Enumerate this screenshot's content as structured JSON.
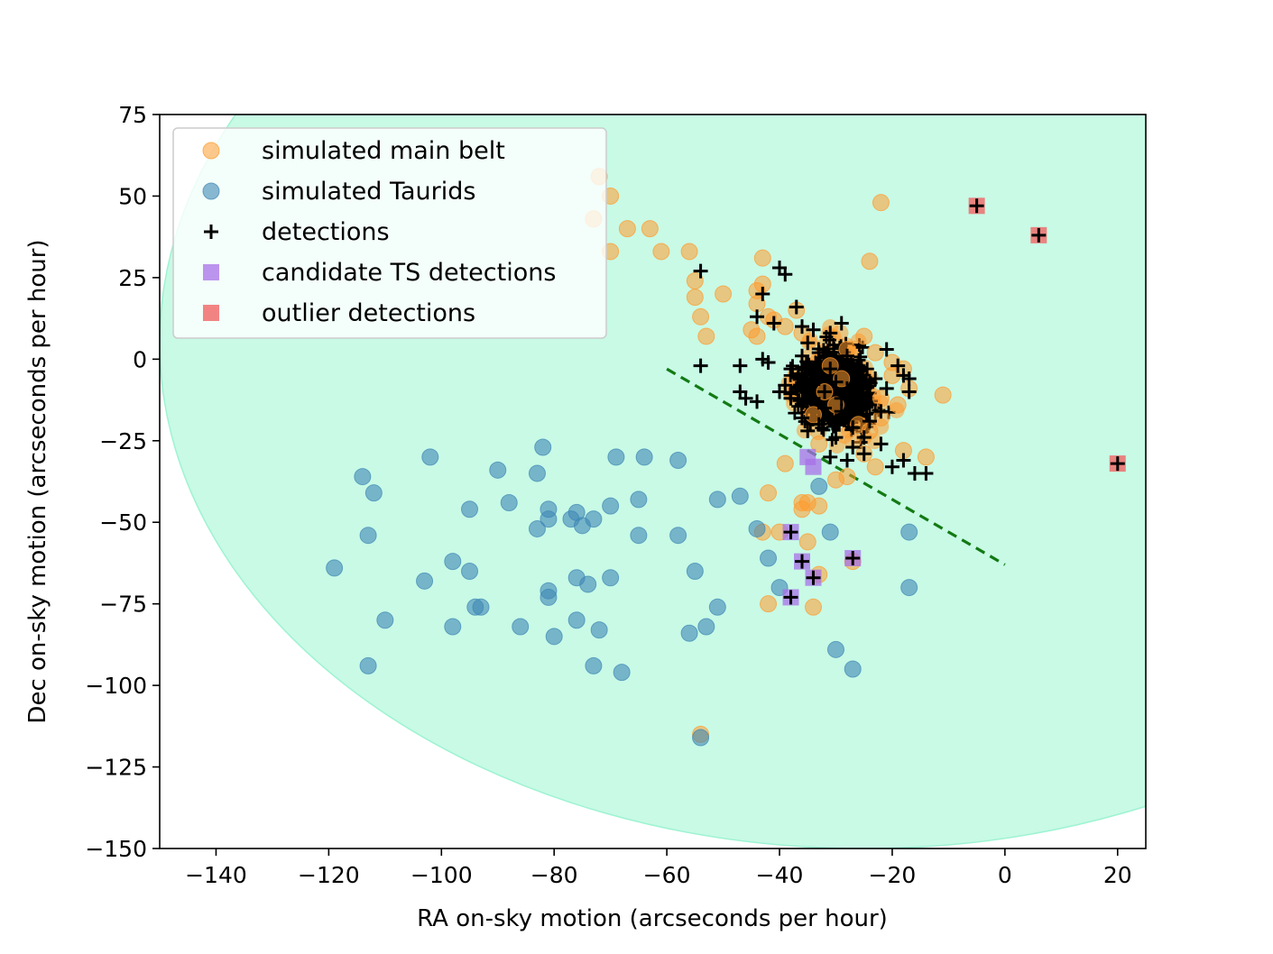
{
  "chart_data": {
    "type": "scatter",
    "title": "",
    "xlabel": "RA on-sky motion (arcseconds per hour)",
    "ylabel": "Dec on-sky motion (arcseconds per hour)",
    "xlim": [
      -150,
      25
    ],
    "ylim": [
      -150,
      75
    ],
    "xticks": [
      -140,
      -120,
      -100,
      -80,
      -60,
      -40,
      -20,
      0,
      20
    ],
    "yticks": [
      -150,
      -125,
      -100,
      -75,
      -50,
      -25,
      0,
      25,
      50,
      75
    ],
    "xtick_labels": [
      "−140",
      "−120",
      "−100",
      "−80",
      "−60",
      "−40",
      "−20",
      "0",
      "20"
    ],
    "ytick_labels": [
      "−150",
      "−125",
      "−100",
      "−75",
      "−50",
      "−25",
      "0",
      "25",
      "50",
      "75"
    ],
    "grid": false,
    "legend_position": "top-left",
    "colors": {
      "main_belt": "#ff9a2e",
      "taurids": "#3f87b5",
      "detections": "#000000",
      "candidate": "#a870e8",
      "outlier": "#f06565",
      "region": "#c8fae6",
      "region_edge": "#9ef3d2",
      "threshold_line": "#137a13"
    },
    "region": {
      "shape": "ellipse",
      "center": [
        -25,
        5
      ],
      "semi_axes": [
        125,
        155
      ]
    },
    "threshold_line": {
      "style": "dashed",
      "points": [
        [
          -60,
          -3
        ],
        [
          0,
          -63
        ]
      ]
    },
    "series": [
      {
        "name": "simulated main belt",
        "marker": "circle",
        "points": [
          [
            -72,
            56
          ],
          [
            -70,
            50
          ],
          [
            -73,
            43
          ],
          [
            -67,
            40
          ],
          [
            -63,
            40
          ],
          [
            -70,
            33
          ],
          [
            -61,
            33
          ],
          [
            -56,
            33
          ],
          [
            -55,
            24
          ],
          [
            -55,
            19
          ],
          [
            -54,
            13
          ],
          [
            -53,
            7
          ],
          [
            -50,
            20
          ],
          [
            -44,
            21
          ],
          [
            -44,
            17
          ],
          [
            -43,
            23
          ],
          [
            -43,
            31
          ],
          [
            -41,
            12
          ],
          [
            -45,
            9
          ],
          [
            -44,
            7
          ],
          [
            -42,
            13
          ],
          [
            -39,
            10
          ],
          [
            -37,
            15
          ],
          [
            -36,
            8
          ],
          [
            -24,
            30
          ],
          [
            -22,
            48
          ],
          [
            -25,
            7
          ],
          [
            -23,
            2
          ],
          [
            -20,
            -1
          ],
          [
            -18,
            -3
          ],
          [
            -17,
            -9
          ],
          [
            -19,
            -14
          ],
          [
            -22,
            -18
          ],
          [
            -24,
            -22
          ],
          [
            -27,
            -25
          ],
          [
            -25,
            -29
          ],
          [
            -23,
            -33
          ],
          [
            -28,
            -36
          ],
          [
            -30,
            -37
          ],
          [
            -18,
            -28
          ],
          [
            -14,
            -30
          ],
          [
            -11,
            -11
          ],
          [
            -39,
            -32
          ],
          [
            -42,
            -41
          ],
          [
            -36,
            -44
          ],
          [
            -35,
            -44
          ],
          [
            -36,
            -46
          ],
          [
            -33,
            -45
          ],
          [
            -43,
            -53
          ],
          [
            -40,
            -53
          ],
          [
            -35,
            -56
          ],
          [
            -34,
            -76
          ],
          [
            -33,
            -66
          ],
          [
            -27,
            -62
          ],
          [
            -42,
            -75
          ],
          [
            -54,
            -115
          ],
          [
            -32,
            -10
          ],
          [
            -30,
            -14
          ],
          [
            -29,
            -6
          ],
          [
            -34,
            -17
          ],
          [
            -26,
            -20
          ],
          [
            -31,
            -2
          ],
          [
            -28,
            3
          ],
          [
            -33,
            -26
          ],
          [
            -22,
            -12
          ],
          [
            -20,
            -5
          ]
        ]
      },
      {
        "name": "simulated Taurids",
        "marker": "circle",
        "points": [
          [
            -114,
            -36
          ],
          [
            -112,
            -41
          ],
          [
            -113,
            -54
          ],
          [
            -119,
            -64
          ],
          [
            -113,
            -94
          ],
          [
            -110,
            -80
          ],
          [
            -102,
            -30
          ],
          [
            -103,
            -68
          ],
          [
            -98,
            -62
          ],
          [
            -98,
            -82
          ],
          [
            -95,
            -46
          ],
          [
            -95,
            -65
          ],
          [
            -94,
            -76
          ],
          [
            -93,
            -76
          ],
          [
            -90,
            -34
          ],
          [
            -88,
            -44
          ],
          [
            -83,
            -52
          ],
          [
            -82,
            -27
          ],
          [
            -83,
            -35
          ],
          [
            -81,
            -49
          ],
          [
            -81,
            -46
          ],
          [
            -81,
            -71
          ],
          [
            -81,
            -73
          ],
          [
            -80,
            -85
          ],
          [
            -86,
            -82
          ],
          [
            -77,
            -49
          ],
          [
            -76,
            -47
          ],
          [
            -75,
            -51
          ],
          [
            -73,
            -49
          ],
          [
            -76,
            -67
          ],
          [
            -74,
            -69
          ],
          [
            -76,
            -80
          ],
          [
            -72,
            -83
          ],
          [
            -73,
            -94
          ],
          [
            -68,
            -96
          ],
          [
            -70,
            -45
          ],
          [
            -70,
            -67
          ],
          [
            -69,
            -30
          ],
          [
            -65,
            -43
          ],
          [
            -65,
            -54
          ],
          [
            -64,
            -30
          ],
          [
            -58,
            -31
          ],
          [
            -58,
            -54
          ],
          [
            -56,
            -84
          ],
          [
            -55,
            -65
          ],
          [
            -53,
            -82
          ],
          [
            -51,
            -43
          ],
          [
            -51,
            -76
          ],
          [
            -47,
            -42
          ],
          [
            -44,
            -52
          ],
          [
            -42,
            -61
          ],
          [
            -40,
            -70
          ],
          [
            -33,
            -39
          ],
          [
            -31,
            -53
          ],
          [
            -30,
            -89
          ],
          [
            -27,
            -95
          ],
          [
            -17,
            -53
          ],
          [
            -17,
            -70
          ],
          [
            -54,
            -116
          ]
        ]
      },
      {
        "name": "detections",
        "marker": "plus",
        "points": [
          [
            -54,
            27
          ],
          [
            -40,
            28
          ],
          [
            -39,
            26
          ],
          [
            -43,
            20
          ],
          [
            -37,
            16
          ],
          [
            -44,
            13
          ],
          [
            -41,
            11
          ],
          [
            -36,
            10
          ],
          [
            -29,
            11
          ],
          [
            -54,
            -2
          ],
          [
            -47,
            -2
          ],
          [
            -43,
            0
          ],
          [
            -42,
            -1
          ],
          [
            -47,
            -10
          ],
          [
            -46,
            -12
          ],
          [
            -44,
            -13
          ],
          [
            -40,
            -10
          ],
          [
            -38,
            -12
          ],
          [
            -36,
            -18
          ],
          [
            -35,
            -22
          ],
          [
            -21,
            3
          ],
          [
            -19,
            -2
          ],
          [
            -18,
            -5
          ],
          [
            -17,
            -6
          ],
          [
            -17,
            -10
          ],
          [
            -22,
            -26
          ],
          [
            -18,
            -31
          ],
          [
            -20,
            -33
          ],
          [
            -16,
            -35
          ],
          [
            -14,
            -35
          ],
          [
            -25,
            -29
          ],
          [
            -28,
            -31
          ],
          [
            -31,
            -30
          ],
          [
            -38,
            -53
          ],
          [
            -36,
            -62
          ],
          [
            -34,
            -67
          ],
          [
            -38,
            -73
          ],
          [
            -27,
            -61
          ],
          [
            -5,
            47
          ],
          [
            6,
            38
          ],
          [
            20,
            -32
          ],
          [
            -35,
            5
          ],
          [
            -33,
            2
          ],
          [
            -31,
            -3
          ],
          [
            -30,
            -7
          ],
          [
            -28,
            -9
          ],
          [
            -26,
            -11
          ],
          [
            -24,
            -14
          ],
          [
            -32,
            -15
          ],
          [
            -30,
            -19
          ],
          [
            -27,
            -21
          ],
          [
            -25,
            -24
          ],
          [
            -34,
            -12
          ],
          [
            -36,
            -6
          ],
          [
            -38,
            -3
          ],
          [
            -35,
            -1
          ],
          [
            -32,
            -10
          ],
          [
            -29,
            -16
          ],
          [
            -23,
            -6
          ],
          [
            -21,
            -9
          ],
          [
            -22,
            -16
          ],
          [
            -26,
            -2
          ],
          [
            -28,
            1
          ],
          [
            -31,
            8
          ],
          [
            -34,
            9
          ],
          [
            -36,
            1
          ],
          [
            -33,
            -20
          ],
          [
            -30,
            -24
          ],
          [
            -27,
            -27
          ],
          [
            -29,
            -12
          ],
          [
            -26,
            -8
          ],
          [
            -24,
            -19
          ],
          [
            -37,
            -9
          ],
          [
            -39,
            -8
          ],
          [
            -33,
            -6
          ]
        ]
      },
      {
        "name": "candidate TS detections",
        "marker": "square",
        "points": [
          [
            -38,
            -53
          ],
          [
            -36,
            -62
          ],
          [
            -34,
            -67
          ],
          [
            -38,
            -73
          ],
          [
            -27,
            -61
          ],
          [
            -34,
            -33
          ],
          [
            -35,
            -30
          ]
        ]
      },
      {
        "name": "outlier detections",
        "marker": "square",
        "points": [
          [
            -5,
            47
          ],
          [
            6,
            38
          ],
          [
            20,
            -32
          ]
        ]
      }
    ],
    "dense_cluster": {
      "x_range": [
        -42,
        -18
      ],
      "y_range": [
        -30,
        12
      ],
      "description_hidden": true
    }
  }
}
